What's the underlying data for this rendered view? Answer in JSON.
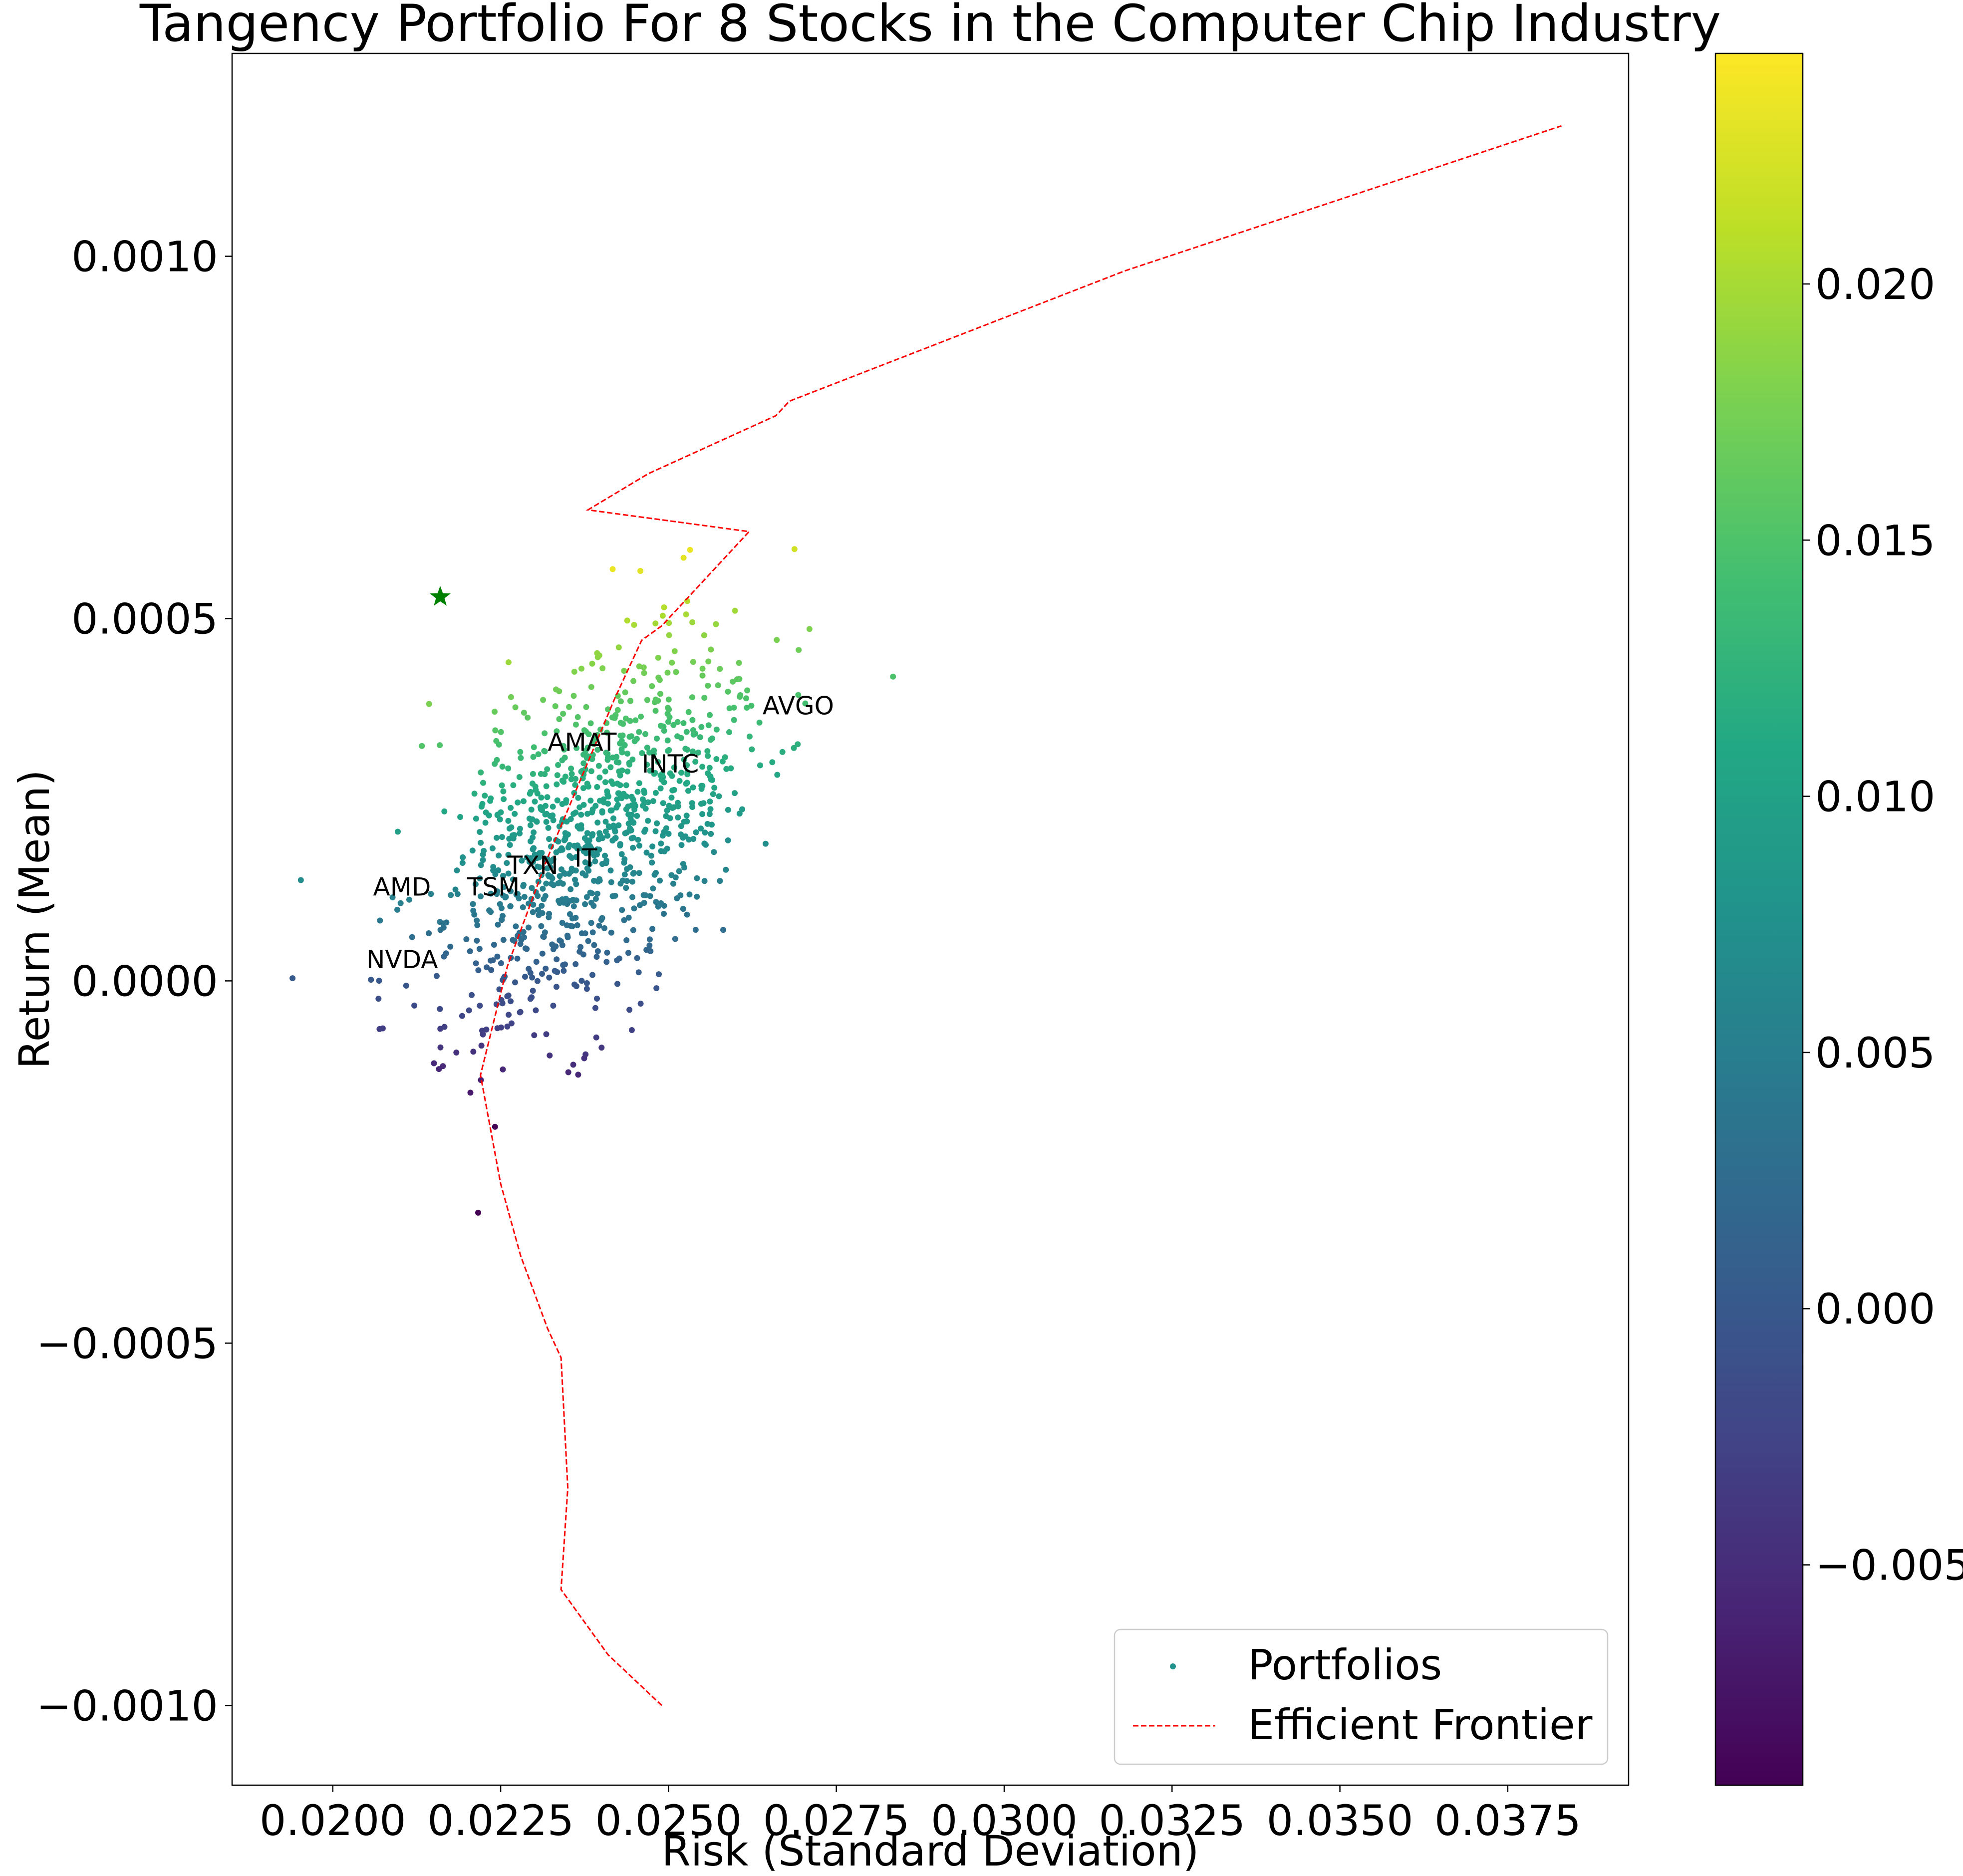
{
  "chart_data": {
    "type": "scatter",
    "title": "Tangency Portfolio For 8 Stocks in the Computer Chip Industry",
    "xlabel": "Risk (Standard Deviation)",
    "ylabel": "Return (Mean)",
    "xlim": [
      0.0185,
      0.0393
    ],
    "ylim": [
      -0.00111,
      0.00128
    ],
    "x_ticks": [
      0.02,
      0.0225,
      0.025,
      0.0275,
      0.03,
      0.0325,
      0.035,
      0.0375
    ],
    "x_tick_labels": [
      "0.0200",
      "0.0225",
      "0.0250",
      "0.0275",
      "0.0300",
      "0.0325",
      "0.0350",
      "0.0375"
    ],
    "y_ticks": [
      0.001,
      0.0005,
      0.0,
      -0.0005,
      -0.001
    ],
    "y_tick_labels": [
      "0.0010",
      "0.0005",
      "0.0000",
      "−0.0005",
      "−0.0010"
    ],
    "colorbar": {
      "colormap": "viridis",
      "range": [
        -0.0093,
        0.0245
      ],
      "ticks": [
        0.02,
        0.015,
        0.01,
        0.005,
        0.0,
        -0.005
      ],
      "tick_labels": [
        "0.020",
        "0.015",
        "0.010",
        "0.005",
        "0.000",
        "−0.005"
      ]
    },
    "legend": {
      "placement": "lower right",
      "entries": [
        {
          "label": "Portfolios",
          "kind": "marker",
          "color": "#21918c"
        },
        {
          "label": "Efficient Frontier",
          "kind": "dashed-line",
          "color": "#ff0000"
        }
      ]
    },
    "series": [
      {
        "name": "Portfolios",
        "type": "scatter",
        "colored_by": "colorbar",
        "point_count": 1000
      },
      {
        "name": "Efficient Frontier",
        "type": "line",
        "style": "dashed",
        "color": "#ff0000",
        "points": [
          [
            0.0249,
            -0.001
          ],
          [
            0.0241,
            -0.00093
          ],
          [
            0.0234,
            -0.00084
          ],
          [
            0.0235,
            -0.0007
          ],
          [
            0.0234,
            -0.00052
          ],
          [
            0.0232,
            -0.00048
          ],
          [
            0.0228,
            -0.00038
          ],
          [
            0.0225,
            -0.00028
          ],
          [
            0.0222,
            -0.00013
          ],
          [
            0.0226,
            2e-05
          ],
          [
            0.0232,
            0.00017
          ],
          [
            0.0237,
            0.00028
          ],
          [
            0.0242,
            0.00039
          ],
          [
            0.0246,
            0.00047
          ],
          [
            0.0249,
            0.00049
          ],
          [
            0.0262,
            0.00062
          ],
          [
            0.0238,
            0.00065
          ],
          [
            0.0247,
            0.0007
          ],
          [
            0.0266,
            0.00078
          ],
          [
            0.0268,
            0.0008
          ],
          [
            0.0318,
            0.00098
          ],
          [
            0.0383,
            0.00118
          ]
        ]
      }
    ],
    "tangency_point": {
      "x": 0.0216,
      "y": 0.00053,
      "marker": "star",
      "color": "#008000"
    },
    "annotations": [
      {
        "text": "AVGO",
        "x": 0.0264,
        "y": 0.00038
      },
      {
        "text": "AMAT",
        "x": 0.0232,
        "y": 0.00033
      },
      {
        "text": "INTC",
        "x": 0.0246,
        "y": 0.0003
      },
      {
        "text": "IT",
        "x": 0.0236,
        "y": 0.00017
      },
      {
        "text": "TXN",
        "x": 0.0226,
        "y": 0.00016
      },
      {
        "text": "AMD",
        "x": 0.0206,
        "y": 0.00013
      },
      {
        "text": "TSM",
        "x": 0.022,
        "y": 0.00013
      },
      {
        "text": "NVDA",
        "x": 0.0205,
        "y": 3e-05
      }
    ]
  }
}
